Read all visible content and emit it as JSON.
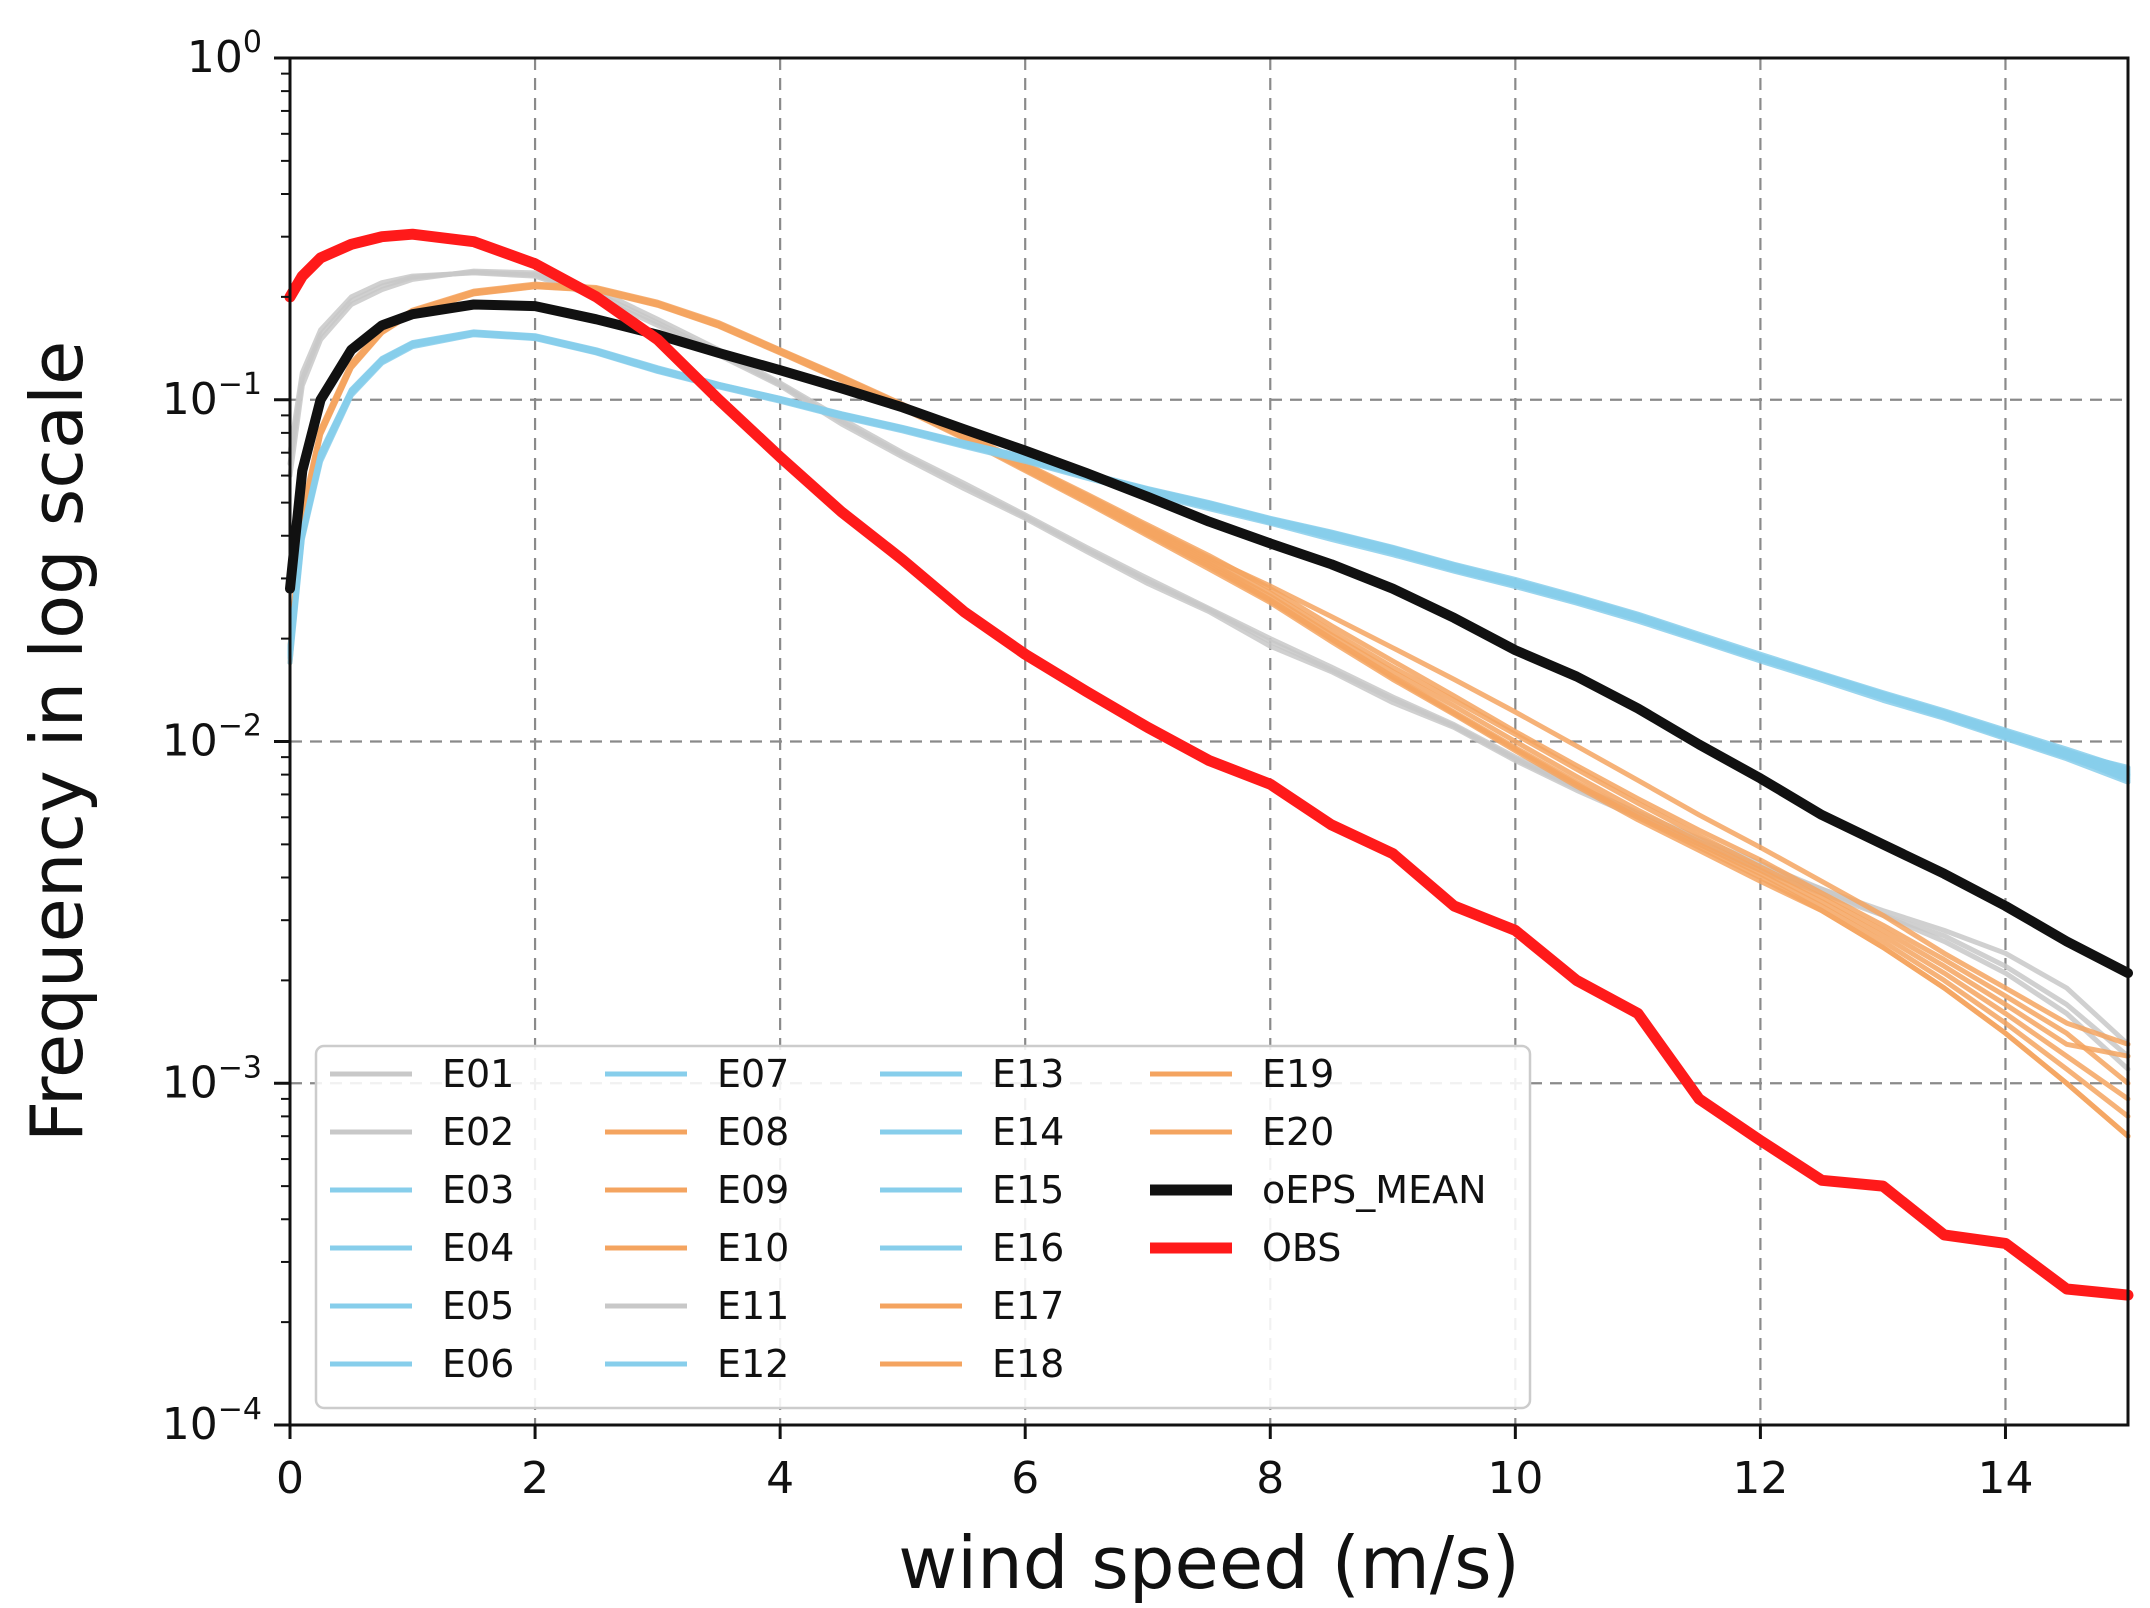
{
  "chart_data": {
    "type": "line",
    "title": "",
    "xlabel": "wind speed (m/s)",
    "ylabel": "Frequency in log scale",
    "xlim": [
      0,
      15
    ],
    "ylim": [
      0.0001,
      1
    ],
    "yscale": "log",
    "grid": true,
    "legend_position": "lower-left",
    "x_ticks": [
      {
        "value": 0,
        "label": "0"
      },
      {
        "value": 2,
        "label": "2"
      },
      {
        "value": 4,
        "label": "4"
      },
      {
        "value": 6,
        "label": "6"
      },
      {
        "value": 8,
        "label": "8"
      },
      {
        "value": 10,
        "label": "10"
      },
      {
        "value": 12,
        "label": "12"
      },
      {
        "value": 14,
        "label": "14"
      }
    ],
    "y_ticks": [
      {
        "value": 1,
        "base": "10",
        "exp": "0"
      },
      {
        "value": 0.1,
        "base": "10",
        "exp": "−1"
      },
      {
        "value": 0.01,
        "base": "10",
        "exp": "−2"
      },
      {
        "value": 0.001,
        "base": "10",
        "exp": "−3"
      },
      {
        "value": 0.0001,
        "base": "10",
        "exp": "−4"
      }
    ],
    "x": [
      0,
      0.1,
      0.25,
      0.5,
      0.75,
      1,
      1.5,
      2,
      2.5,
      3,
      3.5,
      4,
      4.5,
      5,
      5.5,
      6,
      6.5,
      7,
      7.5,
      8,
      8.5,
      9,
      9.5,
      10,
      10.5,
      11,
      11.5,
      12,
      12.5,
      13,
      13.5,
      14,
      14.5,
      15
    ],
    "colors": {
      "gray": "#c8c8c8",
      "blue": "#87ceeb",
      "orange": "#f4a460",
      "mean": "#111111",
      "obs": "#ff1a1a",
      "grid": "#8a8a8a"
    },
    "series": [
      {
        "name": "E01",
        "group": "gray",
        "values": [
          0.07,
          0.12,
          0.16,
          0.2,
          0.22,
          0.23,
          0.235,
          0.23,
          0.2,
          0.165,
          0.135,
          0.11,
          0.085,
          0.068,
          0.055,
          0.045,
          0.036,
          0.029,
          0.024,
          0.019,
          0.016,
          0.013,
          0.011,
          0.0088,
          0.0072,
          0.006,
          0.005,
          0.0042,
          0.0036,
          0.0031,
          0.0026,
          0.0021,
          0.0016,
          0.0011
        ]
      },
      {
        "name": "E02",
        "group": "gray",
        "values": [
          0.06,
          0.11,
          0.15,
          0.19,
          0.21,
          0.225,
          0.238,
          0.235,
          0.21,
          0.172,
          0.14,
          0.112,
          0.088,
          0.07,
          0.057,
          0.046,
          0.037,
          0.03,
          0.0245,
          0.02,
          0.0165,
          0.0135,
          0.0112,
          0.009,
          0.0074,
          0.0062,
          0.0052,
          0.0044,
          0.0037,
          0.0032,
          0.0028,
          0.0024,
          0.0019,
          0.0013
        ]
      },
      {
        "name": "E03",
        "group": "blue",
        "values": [
          0.018,
          0.04,
          0.068,
          0.105,
          0.13,
          0.145,
          0.156,
          0.152,
          0.138,
          0.122,
          0.11,
          0.1,
          0.09,
          0.082,
          0.074,
          0.067,
          0.06,
          0.054,
          0.049,
          0.044,
          0.04,
          0.036,
          0.032,
          0.029,
          0.026,
          0.023,
          0.02,
          0.0175,
          0.0155,
          0.0135,
          0.012,
          0.0105,
          0.0092,
          0.008
        ]
      },
      {
        "name": "E04",
        "group": "blue",
        "values": [
          0.019,
          0.041,
          0.07,
          0.107,
          0.132,
          0.147,
          0.158,
          0.154,
          0.14,
          0.124,
          0.111,
          0.101,
          0.091,
          0.083,
          0.075,
          0.068,
          0.061,
          0.055,
          0.05,
          0.045,
          0.041,
          0.037,
          0.033,
          0.0298,
          0.0266,
          0.0236,
          0.0206,
          0.018,
          0.0158,
          0.0139,
          0.0123,
          0.0108,
          0.0095,
          0.0083
        ]
      },
      {
        "name": "E05",
        "group": "blue",
        "values": [
          0.017,
          0.039,
          0.066,
          0.103,
          0.128,
          0.143,
          0.155,
          0.151,
          0.137,
          0.121,
          0.109,
          0.099,
          0.089,
          0.081,
          0.073,
          0.066,
          0.059,
          0.053,
          0.048,
          0.0435,
          0.039,
          0.0352,
          0.0315,
          0.0284,
          0.0254,
          0.0225,
          0.0197,
          0.0172,
          0.0151,
          0.0132,
          0.0117,
          0.0102,
          0.0089,
          0.0076
        ]
      },
      {
        "name": "E06",
        "group": "blue",
        "values": [
          0.0185,
          0.0405,
          0.069,
          0.106,
          0.131,
          0.146,
          0.157,
          0.153,
          0.139,
          0.123,
          0.1105,
          0.1005,
          0.0905,
          0.0825,
          0.0745,
          0.0675,
          0.0605,
          0.0545,
          0.0495,
          0.0445,
          0.0405,
          0.0365,
          0.0325,
          0.0292,
          0.0262,
          0.0232,
          0.0202,
          0.0177,
          0.0156,
          0.0137,
          0.0121,
          0.0106,
          0.0093,
          0.0081
        ]
      },
      {
        "name": "E07",
        "group": "blue",
        "values": [
          0.0175,
          0.0395,
          0.067,
          0.104,
          0.129,
          0.144,
          0.1555,
          0.1515,
          0.1375,
          0.1215,
          0.1095,
          0.0995,
          0.0895,
          0.0815,
          0.0735,
          0.0665,
          0.0595,
          0.0535,
          0.0485,
          0.044,
          0.0395,
          0.0356,
          0.0318,
          0.0287,
          0.0257,
          0.0228,
          0.0199,
          0.0174,
          0.0153,
          0.0134,
          0.0118,
          0.0103,
          0.009,
          0.0078
        ]
      },
      {
        "name": "E08",
        "group": "orange",
        "values": [
          0.018,
          0.045,
          0.08,
          0.125,
          0.158,
          0.18,
          0.205,
          0.215,
          0.21,
          0.19,
          0.165,
          0.138,
          0.115,
          0.095,
          0.078,
          0.063,
          0.051,
          0.041,
          0.033,
          0.026,
          0.02,
          0.0155,
          0.0122,
          0.0096,
          0.0076,
          0.0061,
          0.005,
          0.0041,
          0.0033,
          0.0026,
          0.002,
          0.0015,
          0.0011,
          0.0008
        ]
      },
      {
        "name": "E09",
        "group": "orange",
        "values": [
          0.019,
          0.047,
          0.082,
          0.128,
          0.16,
          0.183,
          0.208,
          0.218,
          0.213,
          0.193,
          0.168,
          0.14,
          0.117,
          0.097,
          0.08,
          0.065,
          0.053,
          0.043,
          0.035,
          0.028,
          0.0218,
          0.0172,
          0.0136,
          0.0107,
          0.0085,
          0.0068,
          0.0055,
          0.0045,
          0.0036,
          0.0029,
          0.0023,
          0.0018,
          0.0014,
          0.001
        ]
      },
      {
        "name": "E10",
        "group": "orange",
        "values": [
          0.017,
          0.044,
          0.079,
          0.124,
          0.157,
          0.179,
          0.204,
          0.214,
          0.209,
          0.189,
          0.164,
          0.137,
          0.114,
          0.094,
          0.077,
          0.062,
          0.05,
          0.04,
          0.032,
          0.0255,
          0.0196,
          0.0152,
          0.012,
          0.0094,
          0.0074,
          0.0059,
          0.0048,
          0.0039,
          0.0032,
          0.0025,
          0.0019,
          0.0014,
          0.001,
          0.0007
        ]
      },
      {
        "name": "E11",
        "group": "gray",
        "values": [
          0.065,
          0.115,
          0.155,
          0.195,
          0.215,
          0.228,
          0.236,
          0.232,
          0.205,
          0.168,
          0.137,
          0.111,
          0.0865,
          0.069,
          0.056,
          0.0455,
          0.0365,
          0.0295,
          0.0243,
          0.0196,
          0.0162,
          0.0133,
          0.0111,
          0.0089,
          0.0073,
          0.0061,
          0.0051,
          0.0043,
          0.0037,
          0.0031,
          0.0027,
          0.0022,
          0.0017,
          0.0012
        ]
      },
      {
        "name": "E12",
        "group": "blue",
        "values": [
          0.0182,
          0.0402,
          0.0685,
          0.1055,
          0.1305,
          0.1455,
          0.1565,
          0.1525,
          0.1385,
          0.1225,
          0.1102,
          0.1002,
          0.0902,
          0.0822,
          0.0742,
          0.0672,
          0.0602,
          0.0542,
          0.0492,
          0.0442,
          0.0402,
          0.0362,
          0.0322,
          0.029,
          0.026,
          0.023,
          0.0201,
          0.0176,
          0.0155,
          0.0136,
          0.012,
          0.0105,
          0.0092,
          0.008
        ]
      },
      {
        "name": "E13",
        "group": "blue",
        "values": [
          0.0188,
          0.0408,
          0.0695,
          0.1065,
          0.1315,
          0.1465,
          0.1575,
          0.1535,
          0.1395,
          0.1235,
          0.1108,
          0.1008,
          0.0908,
          0.0828,
          0.0748,
          0.0678,
          0.0608,
          0.0548,
          0.0498,
          0.0448,
          0.0408,
          0.0368,
          0.0328,
          0.0295,
          0.0264,
          0.0234,
          0.0204,
          0.0178,
          0.0157,
          0.0138,
          0.0122,
          0.0107,
          0.0094,
          0.0082
        ]
      },
      {
        "name": "E14",
        "group": "blue",
        "values": [
          0.0178,
          0.0398,
          0.0675,
          0.1045,
          0.1295,
          0.1445,
          0.1558,
          0.1518,
          0.1378,
          0.1218,
          0.1098,
          0.0998,
          0.0898,
          0.0818,
          0.0738,
          0.0668,
          0.0598,
          0.0538,
          0.0488,
          0.0438,
          0.0398,
          0.0358,
          0.032,
          0.0288,
          0.0258,
          0.0229,
          0.02,
          0.0175,
          0.0154,
          0.0135,
          0.0119,
          0.0104,
          0.0091,
          0.0079
        ]
      },
      {
        "name": "E15",
        "group": "blue",
        "values": [
          0.0183,
          0.0403,
          0.0688,
          0.1058,
          0.1308,
          0.1458,
          0.1568,
          0.1528,
          0.1388,
          0.1228,
          0.1104,
          0.1004,
          0.0904,
          0.0824,
          0.0744,
          0.0674,
          0.0604,
          0.0544,
          0.0494,
          0.0444,
          0.0404,
          0.0364,
          0.0324,
          0.0291,
          0.0261,
          0.0231,
          0.0202,
          0.0177,
          0.0156,
          0.0137,
          0.0121,
          0.0106,
          0.0093,
          0.0084
        ]
      },
      {
        "name": "E16",
        "group": "blue",
        "values": [
          0.0179,
          0.0399,
          0.0678,
          0.1048,
          0.1298,
          0.1448,
          0.1562,
          0.1522,
          0.1382,
          0.1222,
          0.1099,
          0.0999,
          0.0899,
          0.0819,
          0.0739,
          0.0669,
          0.0599,
          0.0539,
          0.0489,
          0.0439,
          0.0399,
          0.0359,
          0.0321,
          0.0289,
          0.0259,
          0.0229,
          0.02,
          0.0175,
          0.0154,
          0.0135,
          0.0119,
          0.0104,
          0.0091,
          0.0077
        ]
      },
      {
        "name": "E17",
        "group": "orange",
        "values": [
          0.0185,
          0.0455,
          0.081,
          0.1265,
          0.159,
          0.1815,
          0.2065,
          0.2165,
          0.2115,
          0.1915,
          0.1665,
          0.139,
          0.116,
          0.096,
          0.079,
          0.064,
          0.052,
          0.042,
          0.034,
          0.0272,
          0.021,
          0.0165,
          0.0132,
          0.0105,
          0.0083,
          0.0066,
          0.0053,
          0.0043,
          0.0035,
          0.0028,
          0.0022,
          0.0017,
          0.0013,
          0.0012
        ]
      },
      {
        "name": "E18",
        "group": "orange",
        "values": [
          0.0188,
          0.0462,
          0.0815,
          0.127,
          0.1595,
          0.182,
          0.207,
          0.217,
          0.212,
          0.192,
          0.167,
          0.1395,
          0.1165,
          0.0965,
          0.0795,
          0.0645,
          0.0525,
          0.0425,
          0.0345,
          0.0285,
          0.0232,
          0.0188,
          0.0152,
          0.0122,
          0.0097,
          0.0077,
          0.0061,
          0.0049,
          0.0039,
          0.0031,
          0.0024,
          0.0019,
          0.0015,
          0.0013
        ]
      },
      {
        "name": "E19",
        "group": "orange",
        "values": [
          0.0176,
          0.0445,
          0.0795,
          0.1245,
          0.1575,
          0.1795,
          0.2045,
          0.2145,
          0.2095,
          0.1895,
          0.1645,
          0.1375,
          0.1145,
          0.0945,
          0.0775,
          0.0625,
          0.0505,
          0.0405,
          0.0325,
          0.0258,
          0.0199,
          0.0154,
          0.0121,
          0.0095,
          0.0075,
          0.006,
          0.0049,
          0.004,
          0.0032,
          0.0025,
          0.0019,
          0.0014,
          0.001,
          0.0007
        ]
      },
      {
        "name": "E20",
        "group": "orange",
        "values": [
          0.0182,
          0.0452,
          0.0805,
          0.1255,
          0.1585,
          0.1805,
          0.2055,
          0.2155,
          0.2105,
          0.1905,
          0.1655,
          0.1385,
          0.1155,
          0.0955,
          0.0785,
          0.0635,
          0.0515,
          0.0415,
          0.0335,
          0.0266,
          0.0205,
          0.016,
          0.0127,
          0.01,
          0.0079,
          0.0063,
          0.0051,
          0.0042,
          0.0034,
          0.0027,
          0.0021,
          0.0016,
          0.0012,
          0.0009
        ]
      },
      {
        "name": "oEPS_MEAN",
        "group": "mean",
        "values": [
          0.028,
          0.062,
          0.1,
          0.14,
          0.165,
          0.178,
          0.19,
          0.188,
          0.172,
          0.155,
          0.137,
          0.122,
          0.108,
          0.095,
          0.082,
          0.071,
          0.061,
          0.052,
          0.044,
          0.038,
          0.033,
          0.028,
          0.023,
          0.0185,
          0.0155,
          0.0125,
          0.0098,
          0.0078,
          0.0061,
          0.005,
          0.0041,
          0.0033,
          0.0026,
          0.0021
        ]
      },
      {
        "name": "OBS",
        "group": "obs",
        "values": [
          0.2,
          0.23,
          0.26,
          0.285,
          0.3,
          0.305,
          0.29,
          0.25,
          0.2,
          0.15,
          0.1,
          0.068,
          0.047,
          0.034,
          0.024,
          0.018,
          0.014,
          0.011,
          0.0088,
          0.0075,
          0.0057,
          0.0047,
          0.0033,
          0.0028,
          0.002,
          0.0016,
          0.0009,
          0.00068,
          0.00052,
          0.0005,
          0.00036,
          0.00034,
          0.00025,
          0.00024
        ]
      }
    ]
  }
}
